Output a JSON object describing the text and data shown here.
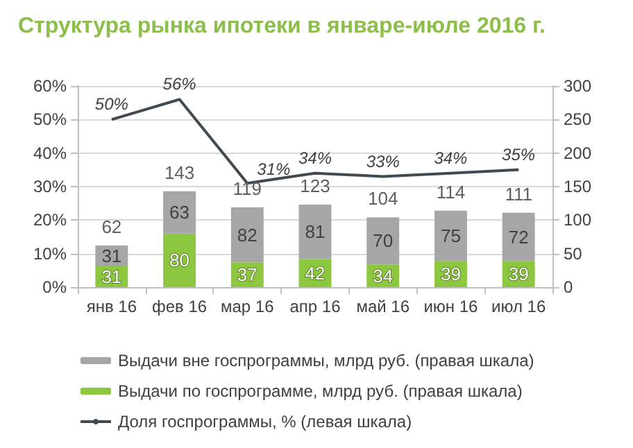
{
  "chart_data": {
    "type": "bar",
    "title": "Структура рынка ипотеки в январе-июле 2016 г.",
    "categories": [
      "янв 16",
      "фев 16",
      "мар 16",
      "апр 16",
      "май 16",
      "июн 16",
      "июл 16"
    ],
    "stacked": true,
    "series": [
      {
        "name": "Выдачи по госпрограмме, млрд руб. (правая шкала)",
        "color": "#8dc63f",
        "axis": "y2",
        "values": [
          31,
          80,
          37,
          42,
          34,
          39,
          39
        ]
      },
      {
        "name": "Выдачи вне госпрограммы, млрд руб. (правая шкала)",
        "color": "#a6a6a6",
        "axis": "y2",
        "values": [
          31,
          63,
          82,
          81,
          70,
          75,
          72
        ]
      },
      {
        "name": "Доля госпрограммы, % (левая шкала)",
        "type": "line",
        "color": "#404a50",
        "values": [
          50,
          56,
          31,
          34,
          33,
          34,
          35
        ],
        "value_labels": [
          "50%",
          "56%",
          "31%",
          "34%",
          "33%",
          "34%",
          "35%"
        ]
      }
    ],
    "data_labels": true,
    "totals": [
      "62",
      "143",
      "119",
      "123",
      "104",
      "114",
      "111"
    ],
    "ylim": [
      0,
      60
    ],
    "yticks": [
      {
        "value": 0,
        "label": "0%"
      },
      {
        "value": 10,
        "label": "10%"
      },
      {
        "value": 20,
        "label": "20%"
      },
      {
        "value": 30,
        "label": "30%"
      },
      {
        "value": 40,
        "label": "40%"
      },
      {
        "value": 50,
        "label": "50%"
      },
      {
        "value": 60,
        "label": "60%"
      }
    ],
    "y2lim": [
      0,
      300
    ],
    "y2ticks": [
      0,
      50,
      100,
      150,
      200,
      250,
      300
    ],
    "grid": "y",
    "legend": "bottom",
    "marker": "none"
  }
}
